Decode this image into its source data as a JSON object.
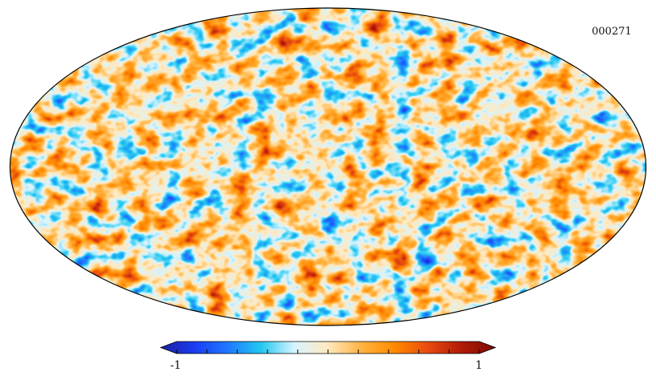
{
  "map": {
    "id_label": "000271",
    "projection": "mollweide",
    "field_seed": 271,
    "colormap": [
      "#1f1f9f",
      "#1a3cf0",
      "#1e78ff",
      "#22c8f0",
      "#d8f4ff",
      "#ffe9bf",
      "#ffb340",
      "#ff8a00",
      "#e84a10",
      "#b01a08",
      "#7a0a00"
    ]
  },
  "colorbar": {
    "min_label": "-1",
    "max_label": "1",
    "tick_count": 10
  },
  "border_color": "#000000"
}
